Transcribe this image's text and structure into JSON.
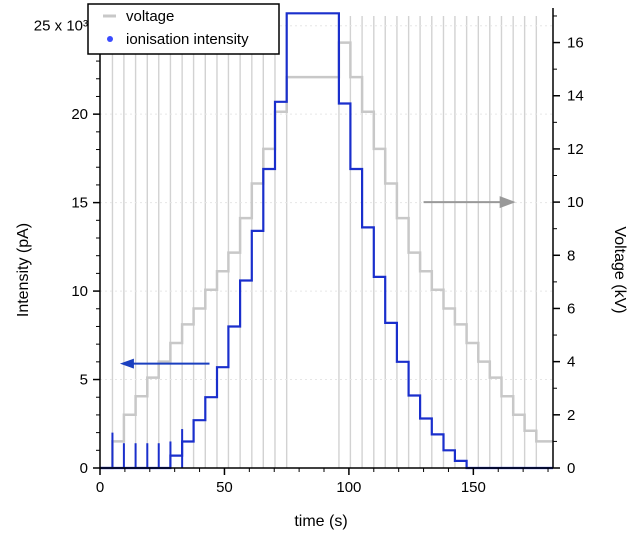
{
  "chart_data": {
    "type": "line",
    "xlabel": "time (s)",
    "ylabel": "Intensity (pA)",
    "y2label": "Voltage (kV)",
    "xlim": [
      0,
      182
    ],
    "ylim": [
      0,
      26000
    ],
    "y2lim": [
      0,
      17.3
    ],
    "x_ticks": [
      0,
      50,
      100,
      150
    ],
    "y_ticks": [
      {
        "value": 0,
        "label": "0"
      },
      {
        "value": 5000,
        "label": "5"
      },
      {
        "value": 10000,
        "label": "10"
      },
      {
        "value": 15000,
        "label": "15"
      },
      {
        "value": 20000,
        "label": "20"
      },
      {
        "value": 25000,
        "label": "25 x 10³"
      }
    ],
    "y2_ticks": [
      0,
      2,
      4,
      6,
      8,
      10,
      12,
      14,
      16
    ],
    "legend_position": "top-left",
    "grid": "vertical lines at voltage step times",
    "colors": {
      "voltage": "#c8c8c8",
      "intensity": "#1a2fcc",
      "voltage_arrow": "#999999",
      "intensity_arrow": "#1a3fbf"
    },
    "series": [
      {
        "name": "voltage",
        "axis": "right",
        "marker": "line",
        "step_times": [
          0,
          5,
          9.6,
          14.3,
          19,
          23.6,
          28.3,
          33,
          37.6,
          42.3,
          47,
          51.6,
          56.3,
          61,
          65.6,
          70.3,
          75,
          96,
          100.6,
          105.3,
          110,
          114.6,
          119.3,
          124,
          128.6,
          133.3,
          138,
          142.6,
          147.3,
          152,
          156.6,
          161.3,
          166,
          170.6,
          175.3,
          182
        ],
        "step_values": [
          0,
          1,
          2,
          2.7,
          3.4,
          4,
          4.7,
          5.4,
          6,
          6.7,
          7.4,
          8.1,
          9.4,
          10.7,
          12,
          13.4,
          14.7,
          16,
          14.7,
          13.4,
          12,
          10.7,
          9.4,
          8.1,
          7.4,
          6.7,
          6,
          5.4,
          4.7,
          4,
          3.4,
          2.7,
          2,
          1.4,
          1,
          0.8
        ]
      },
      {
        "name": "ionisation intensity",
        "axis": "left",
        "marker": "dot",
        "step_times": [
          0,
          5,
          9.6,
          14.3,
          19,
          23.6,
          28.3,
          33,
          37.6,
          42.3,
          47,
          51.6,
          56.3,
          61,
          65.6,
          70.3,
          75,
          96,
          100.6,
          105.3,
          110,
          114.6,
          119.3,
          124,
          128.6,
          133.3,
          138,
          142.6,
          147.3,
          152,
          156.6,
          161.3,
          166,
          170.6,
          175.3,
          182
        ],
        "step_values": [
          0,
          0,
          0,
          0,
          0,
          0,
          700,
          1500,
          2700,
          4000,
          5700,
          8000,
          10600,
          13400,
          16900,
          20700,
          25700,
          20600,
          16900,
          13600,
          10800,
          8200,
          6000,
          4100,
          2800,
          1900,
          1000,
          400,
          0,
          0,
          0,
          0,
          0,
          0,
          0,
          0
        ],
        "spikes": [
          {
            "x": 5,
            "y": 2000
          },
          {
            "x": 9.6,
            "y": 1400
          },
          {
            "x": 14.3,
            "y": 1400
          },
          {
            "x": 19,
            "y": 1400
          },
          {
            "x": 23.6,
            "y": 1400
          },
          {
            "x": 28.3,
            "y": 1500
          },
          {
            "x": 33,
            "y": 2200
          }
        ]
      }
    ]
  },
  "legend": {
    "voltage_label": "voltage",
    "intensity_label": "ionisation intensity"
  }
}
